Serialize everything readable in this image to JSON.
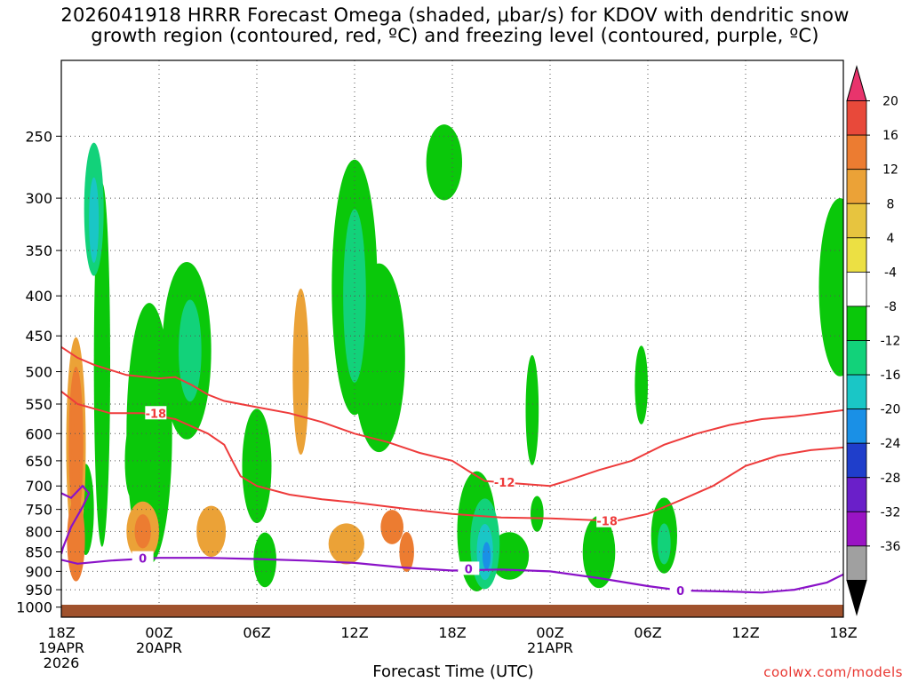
{
  "title_line1": "2026041918 HRRR Forecast Omega (shaded, μbar/s) for KDOV with dendritic snow",
  "title_line2": "growth region (contoured, red, ºC) and freezing level (contoured, purple, ºC)",
  "xlabel": "Forecast Time (UTC)",
  "credit": "coolwx.com/models",
  "chart_data": {
    "type": "heatmap",
    "title": "2026041918 HRRR Forecast Omega (shaded, μbar/s) for KDOV with dendritic snow growth region (contoured, red, ºC) and freezing level (contoured, purple, ºC)",
    "xlabel": "Forecast Time (UTC)",
    "ylabel": "",
    "x_hours_range": [
      0,
      48
    ],
    "y_pressure_range": [
      1030,
      200
    ],
    "grid": true,
    "x_ticks": [
      {
        "hour": 0,
        "line1": "18Z",
        "line2": "19APR",
        "line3": "2026"
      },
      {
        "hour": 6,
        "line1": "00Z",
        "line2": "20APR",
        "line3": ""
      },
      {
        "hour": 12,
        "line1": "06Z",
        "line2": "",
        "line3": ""
      },
      {
        "hour": 18,
        "line1": "12Z",
        "line2": "",
        "line3": ""
      },
      {
        "hour": 24,
        "line1": "18Z",
        "line2": "",
        "line3": ""
      },
      {
        "hour": 30,
        "line1": "00Z",
        "line2": "21APR",
        "line3": ""
      },
      {
        "hour": 36,
        "line1": "06Z",
        "line2": "",
        "line3": ""
      },
      {
        "hour": 42,
        "line1": "12Z",
        "line2": "",
        "line3": ""
      },
      {
        "hour": 48,
        "line1": "18Z",
        "line2": "",
        "line3": ""
      }
    ],
    "y_ticks": [
      250,
      300,
      350,
      400,
      450,
      500,
      550,
      600,
      650,
      700,
      750,
      800,
      850,
      900,
      950,
      1000
    ],
    "colorbar": {
      "labels": [
        20,
        16,
        12,
        8,
        4,
        -4,
        -8,
        -12,
        -16,
        -20,
        -24,
        -28,
        -32,
        -36
      ],
      "colors": [
        "#e8346c",
        "#e8493a",
        "#ec7c31",
        "#eba237",
        "#e7c43f",
        "#ece043",
        "#ffffff",
        "#0ac80a",
        "#12d27a",
        "#1ac6c6",
        "#1a90e6",
        "#1f3ecb",
        "#6a1fc9",
        "#9a14c4",
        "#a0a0a0",
        "#000000"
      ]
    },
    "omega_blobs": [
      {
        "t": 0.9,
        "p": 620,
        "rt": 0.6,
        "rp": 190,
        "level": 2
      },
      {
        "t": 0.9,
        "p": 620,
        "rt": 0.45,
        "rp": 140,
        "level": 3
      },
      {
        "t": 0.9,
        "p": 610,
        "rt": 0.3,
        "rp": 90,
        "level": 4
      },
      {
        "t": 0.9,
        "p": 620,
        "rt": 0.15,
        "rp": 40,
        "level": 5
      },
      {
        "t": 0.9,
        "p": 820,
        "rt": 0.55,
        "rp": 100,
        "level": 3
      },
      {
        "t": 2.0,
        "p": 310,
        "rt": 0.6,
        "rp": 60,
        "level": -2
      },
      {
        "t": 2.0,
        "p": 320,
        "rt": 0.3,
        "rp": 40,
        "level": -3
      },
      {
        "t": 1.5,
        "p": 750,
        "rt": 0.5,
        "rp": 100,
        "level": -1
      },
      {
        "t": 5.0,
        "p": 800,
        "rt": 1.0,
        "rp": 70,
        "level": 2
      },
      {
        "t": 5.0,
        "p": 800,
        "rt": 0.5,
        "rp": 40,
        "level": 3
      },
      {
        "t": 4.3,
        "p": 650,
        "rt": 0.4,
        "rp": 70,
        "level": -1
      },
      {
        "t": 5.4,
        "p": 600,
        "rt": 1.4,
        "rp": 220,
        "level": -1
      },
      {
        "t": 7.7,
        "p": 470,
        "rt": 1.5,
        "rp": 120,
        "level": -1
      },
      {
        "t": 7.9,
        "p": 470,
        "rt": 0.7,
        "rp": 70,
        "level": -2
      },
      {
        "t": 2.5,
        "p": 490,
        "rt": 0.5,
        "rp": 240,
        "level": -1
      },
      {
        "t": 9.2,
        "p": 800,
        "rt": 0.9,
        "rp": 60,
        "level": 2
      },
      {
        "t": 12.0,
        "p": 660,
        "rt": 0.9,
        "rp": 110,
        "level": -1
      },
      {
        "t": 12.5,
        "p": 870,
        "rt": 0.7,
        "rp": 70,
        "level": -1
      },
      {
        "t": 14.7,
        "p": 500,
        "rt": 0.5,
        "rp": 120,
        "level": 2
      },
      {
        "t": 18.0,
        "p": 390,
        "rt": 1.4,
        "rp": 140,
        "level": -1
      },
      {
        "t": 18.0,
        "p": 400,
        "rt": 0.7,
        "rp": 100,
        "level": -2
      },
      {
        "t": 19.5,
        "p": 480,
        "rt": 1.6,
        "rp": 130,
        "level": -1
      },
      {
        "t": 17.5,
        "p": 830,
        "rt": 1.1,
        "rp": 50,
        "level": 2
      },
      {
        "t": 20.3,
        "p": 790,
        "rt": 0.7,
        "rp": 40,
        "level": 3
      },
      {
        "t": 21.2,
        "p": 850,
        "rt": 0.45,
        "rp": 50,
        "level": 3
      },
      {
        "t": 23.5,
        "p": 270,
        "rt": 1.1,
        "rp": 30,
        "level": -1
      },
      {
        "t": 25.5,
        "p": 800,
        "rt": 1.2,
        "rp": 140,
        "level": -1
      },
      {
        "t": 26.0,
        "p": 830,
        "rt": 0.9,
        "rp": 110,
        "level": -2
      },
      {
        "t": 26.0,
        "p": 850,
        "rt": 0.5,
        "rp": 70,
        "level": -3
      },
      {
        "t": 26.1,
        "p": 860,
        "rt": 0.25,
        "rp": 35,
        "level": -4
      },
      {
        "t": 27.5,
        "p": 860,
        "rt": 1.2,
        "rp": 60,
        "level": -1
      },
      {
        "t": 28.9,
        "p": 560,
        "rt": 0.4,
        "rp": 90,
        "level": -1
      },
      {
        "t": 29.2,
        "p": 760,
        "rt": 0.4,
        "rp": 40,
        "level": -1
      },
      {
        "t": 33.0,
        "p": 850,
        "rt": 1.0,
        "rp": 90,
        "level": -1
      },
      {
        "t": 35.6,
        "p": 520,
        "rt": 0.4,
        "rp": 60,
        "level": -1
      },
      {
        "t": 37.0,
        "p": 810,
        "rt": 0.8,
        "rp": 90,
        "level": -1
      },
      {
        "t": 37.0,
        "p": 830,
        "rt": 0.4,
        "rp": 50,
        "level": -2
      },
      {
        "t": 47.8,
        "p": 390,
        "rt": 1.3,
        "rp": 100,
        "level": -1
      }
    ],
    "dgz_contours": [
      {
        "label": "-12",
        "points": [
          [
            0,
            465
          ],
          [
            1,
            480
          ],
          [
            2,
            490
          ],
          [
            4,
            505
          ],
          [
            6,
            510
          ],
          [
            7,
            508
          ],
          [
            8,
            520
          ],
          [
            9,
            535
          ],
          [
            10,
            545
          ],
          [
            12,
            555
          ],
          [
            14,
            565
          ],
          [
            16,
            580
          ],
          [
            18,
            600
          ],
          [
            20,
            615
          ],
          [
            22,
            635
          ],
          [
            24,
            650
          ],
          [
            25,
            670
          ],
          [
            26,
            690
          ],
          [
            28,
            695
          ],
          [
            30,
            700
          ],
          [
            31,
            690
          ],
          [
            33,
            668
          ],
          [
            35,
            650
          ],
          [
            37,
            620
          ],
          [
            39,
            600
          ],
          [
            41,
            585
          ],
          [
            43,
            575
          ],
          [
            45,
            570
          ],
          [
            48,
            560
          ]
        ]
      },
      {
        "label": "-18",
        "points": [
          [
            0,
            530
          ],
          [
            1,
            550
          ],
          [
            3,
            565
          ],
          [
            5,
            565
          ],
          [
            7,
            575
          ],
          [
            9,
            600
          ],
          [
            10,
            620
          ],
          [
            10.5,
            650
          ],
          [
            11,
            680
          ],
          [
            12,
            700
          ],
          [
            14,
            718
          ],
          [
            16,
            728
          ],
          [
            18,
            735
          ],
          [
            21,
            748
          ],
          [
            24,
            760
          ],
          [
            27,
            768
          ],
          [
            30,
            770
          ],
          [
            34,
            776
          ],
          [
            36,
            760
          ],
          [
            38,
            730
          ],
          [
            40,
            700
          ],
          [
            42,
            660
          ],
          [
            44,
            640
          ],
          [
            46,
            630
          ],
          [
            48,
            625
          ]
        ]
      }
    ],
    "freezing_level": {
      "label": "0",
      "points": [
        [
          0,
          870
        ],
        [
          1,
          880
        ],
        [
          3,
          872
        ],
        [
          6,
          865
        ],
        [
          9,
          865
        ],
        [
          12,
          868
        ],
        [
          15,
          872
        ],
        [
          18,
          878
        ],
        [
          21,
          890
        ],
        [
          24,
          898
        ],
        [
          27,
          895
        ],
        [
          30,
          900
        ],
        [
          33,
          918
        ],
        [
          36,
          940
        ],
        [
          38,
          952
        ],
        [
          41,
          955
        ],
        [
          43,
          958
        ],
        [
          45,
          950
        ],
        [
          47,
          930
        ],
        [
          48,
          908
        ]
      ]
    },
    "freezing_level_low": {
      "points": [
        [
          0,
          715
        ],
        [
          0.6,
          725
        ],
        [
          1.3,
          700
        ],
        [
          1.7,
          715
        ],
        [
          1.3,
          745
        ],
        [
          0.6,
          790
        ],
        [
          0.1,
          840
        ],
        [
          0,
          855
        ]
      ]
    }
  }
}
